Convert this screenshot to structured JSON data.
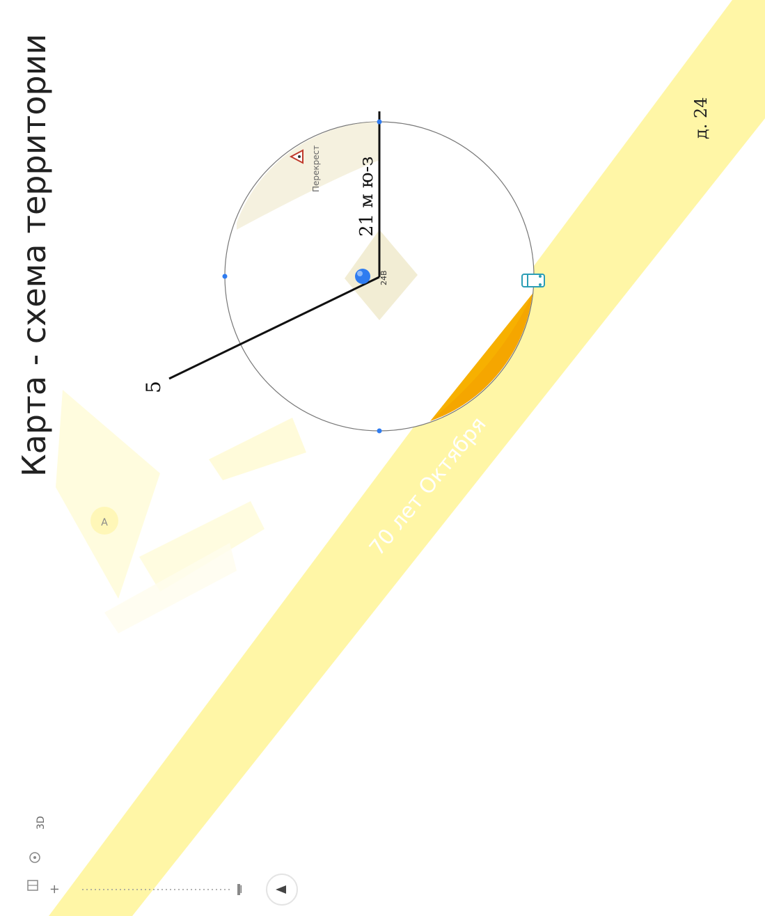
{
  "title": "Карта - схема территории",
  "labels": {
    "house": "д. 24",
    "distance": "21 м ю-з",
    "marker_number": "5",
    "building_number": "24В",
    "crossing": "Перекрест",
    "street": "70 лет Октября"
  },
  "controls": {
    "view_3d": "3D",
    "zoom_in": "+",
    "zoom_out": "−"
  },
  "colors": {
    "road_yellow": "#fff6a6",
    "danger_zone": "#f5a600",
    "circle": "#777777",
    "marker_blue": "#2f7cf0"
  },
  "icons": {
    "crossing": "warning-triangle-icon",
    "stop": "bus-stop-icon",
    "location": "location-dot-icon",
    "compass": "compass-icon"
  }
}
